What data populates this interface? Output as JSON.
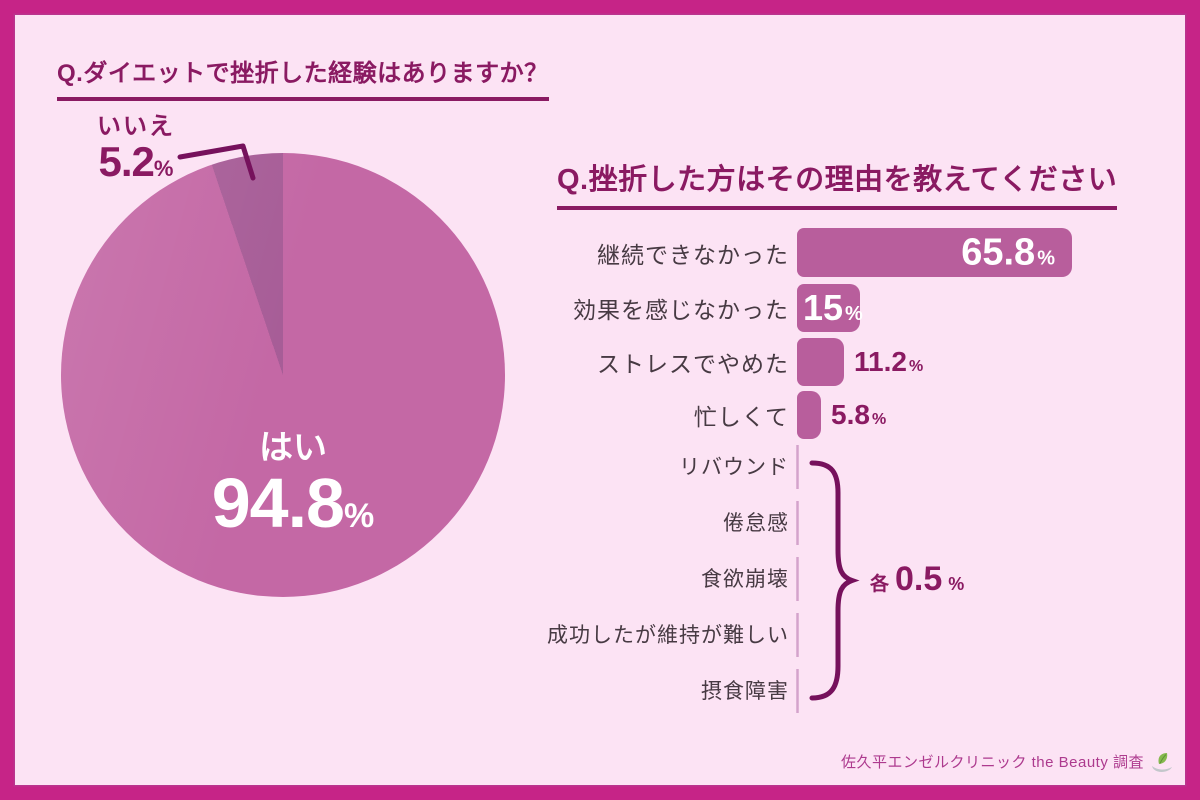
{
  "colors": {
    "frame": "#c62487",
    "panel_background": "#fce3f4",
    "title": "#8a1a62",
    "bar": "#b85e9c",
    "pie_yes": "#c468a5",
    "pie_no": "#a75d97",
    "value_dark": "#8a1a62",
    "value_light": "#ffffff",
    "brace": "#76115c",
    "axis": "#d4a3cb",
    "label_text": "#473a43",
    "footer": "#ad3a8e"
  },
  "pie_section": {
    "question": "Q.ダイエットで挫折した経験はありますか？",
    "yes": {
      "label": "はい",
      "value": "94.8"
    },
    "no": {
      "label": "いいえ",
      "value": "5.2"
    },
    "percent": "%"
  },
  "bar_section": {
    "question": "Q.挫折した方はその理由を教えてください",
    "bars": [
      {
        "label": "継続できなかった",
        "value": 65.8,
        "display": "65.8"
      },
      {
        "label": "効果を感じなかった",
        "value": 15,
        "display": "15"
      },
      {
        "label": "ストレスでやめた",
        "value": 11.2,
        "display": "11.2"
      },
      {
        "label": "忙しくて",
        "value": 5.8,
        "display": "5.8"
      }
    ],
    "group_items": [
      "リバウンド",
      "倦怠感",
      "食欲崩壊",
      "成功したが維持が難しい",
      "摂食障害"
    ],
    "group_prefix": "各",
    "group_value": "0.5",
    "percent": "%"
  },
  "footer": {
    "credit": "佐久平エンゼルクリニック the Beauty 調査"
  },
  "chart_data": [
    {
      "type": "pie",
      "title": "Q.ダイエットで挫折した経験はありますか？",
      "labels": [
        "はい",
        "いいえ"
      ],
      "values": [
        94.8,
        5.2
      ],
      "unit": "%",
      "colors": [
        "#c468a5",
        "#a75d97"
      ],
      "legend_position": "none",
      "data_labels": [
        "はい 94.8%",
        "いいえ 5.2%"
      ]
    },
    {
      "type": "bar",
      "title": "Q.挫折した方はその理由を教えてください",
      "orientation": "horizontal",
      "categories": [
        "継続できなかった",
        "効果を感じなかった",
        "ストレスでやめた",
        "忙しくて",
        "リバウンド",
        "倦怠感",
        "食欲崩壊",
        "成功したが維持が難しい",
        "摂食障害"
      ],
      "values": [
        65.8,
        15,
        11.2,
        5.8,
        0.5,
        0.5,
        0.5,
        0.5,
        0.5
      ],
      "unit": "%",
      "xlim": [
        0,
        70
      ],
      "grid": false,
      "annotation": "各 0.5%"
    }
  ]
}
